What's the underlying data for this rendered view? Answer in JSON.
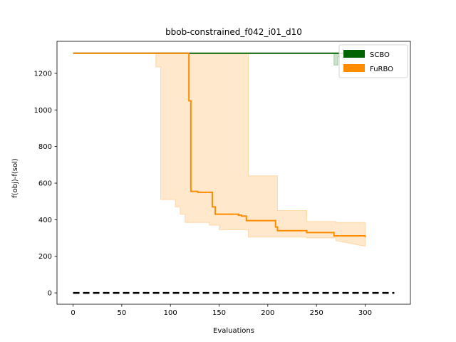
{
  "chart_data": {
    "type": "line",
    "title": "bbob-constrained_f042_i01_d10",
    "xlabel": "Evaluations",
    "ylabel": "f(obj)-f(sol)",
    "xlim": [
      -16.5,
      346.5
    ],
    "ylim": [
      -62,
      1375
    ],
    "xticks": [
      0,
      50,
      100,
      150,
      200,
      250,
      300
    ],
    "yticks": [
      0,
      200,
      400,
      600,
      800,
      1000,
      1200
    ],
    "grid": false,
    "legend_position": "top-right",
    "series": [
      {
        "name": "SCBO",
        "color": "#006400",
        "x": [
          0,
          300
        ],
        "y": [
          1310,
          1310
        ],
        "band": {
          "x": [
            0,
            268,
            268,
            272,
            272,
            300
          ],
          "lower": [
            1310,
            1310,
            1245,
            1245,
            1290,
            1290
          ],
          "upper": [
            1310,
            1310,
            1310,
            1310,
            1310,
            1310
          ]
        }
      },
      {
        "name": "FuRBO",
        "color": "#ff8c00",
        "x": [
          0,
          119,
          119,
          121,
          121,
          128,
          128,
          135,
          135,
          143,
          143,
          146,
          146,
          150,
          150,
          170,
          170,
          173,
          173,
          178,
          178,
          208,
          208,
          210,
          210,
          240,
          240,
          268,
          268,
          300,
          300
        ],
        "y": [
          1310,
          1310,
          1050,
          1050,
          555,
          555,
          550,
          550,
          550,
          550,
          470,
          470,
          430,
          430,
          430,
          430,
          425,
          425,
          420,
          420,
          395,
          395,
          360,
          360,
          340,
          340,
          330,
          330,
          312,
          312,
          305
        ],
        "band": {
          "x": [
            0,
            82,
            82,
            85,
            85,
            90,
            90,
            105,
            105,
            110,
            110,
            115,
            115,
            130,
            130,
            140,
            140,
            150,
            150,
            180,
            180,
            210,
            210,
            240,
            240,
            270,
            270,
            300
          ],
          "lower": [
            1310,
            1310,
            1310,
            1310,
            1235,
            1235,
            510,
            510,
            470,
            470,
            430,
            430,
            385,
            385,
            385,
            385,
            370,
            370,
            345,
            345,
            305,
            305,
            305,
            305,
            300,
            300,
            285,
            255
          ],
          "upper": [
            1310,
            1310,
            1310,
            1310,
            1310,
            1310,
            1310,
            1310,
            1310,
            1310,
            1310,
            1310,
            1310,
            1310,
            1310,
            1310,
            1310,
            1310,
            1310,
            1310,
            640,
            640,
            450,
            450,
            390,
            390,
            385,
            385
          ]
        }
      }
    ],
    "reference_line": {
      "x": [
        0,
        330
      ],
      "y": [
        0,
        0
      ],
      "color": "#000000",
      "style": "dashed"
    }
  }
}
